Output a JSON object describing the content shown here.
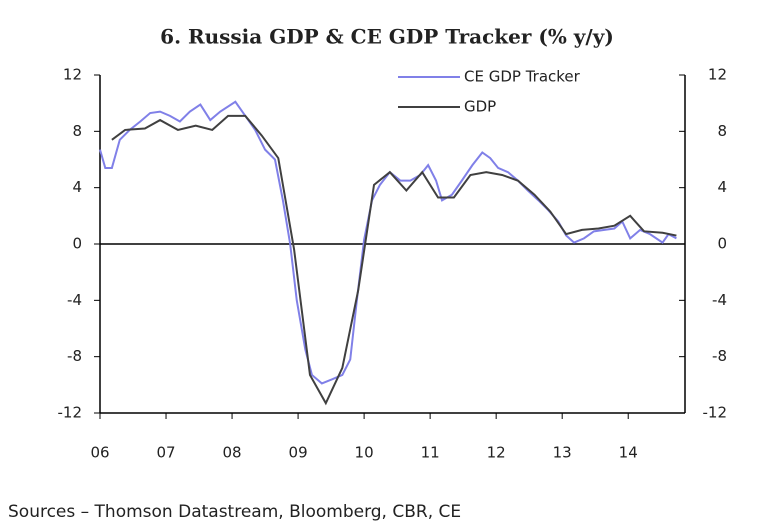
{
  "chart_data": {
    "type": "line",
    "title": "6. Russia GDP & CE GDP Tracker (% y/y)",
    "source": "Sources – Thomson Datastream, Bloomberg, CBR, CE",
    "xlim": [
      2006,
      2014.86
    ],
    "xticks": [
      {
        "value": 2006,
        "label": "06"
      },
      {
        "value": 2007,
        "label": "07"
      },
      {
        "value": 2008,
        "label": "08"
      },
      {
        "value": 2009,
        "label": "09"
      },
      {
        "value": 2010,
        "label": "10"
      },
      {
        "value": 2011,
        "label": "11"
      },
      {
        "value": 2012,
        "label": "12"
      },
      {
        "value": 2013,
        "label": "13"
      },
      {
        "value": 2014,
        "label": "14"
      }
    ],
    "ylim": [
      -12,
      12
    ],
    "yticks": [
      -12,
      -8,
      -4,
      0,
      4,
      8,
      12
    ],
    "y2lim": [
      -12,
      12
    ],
    "y2ticks": [
      -12,
      -8,
      -4,
      0,
      4,
      8,
      12
    ],
    "legend": "top-right",
    "series": [
      {
        "name": "CE GDP Tracker",
        "color": "#8080e8",
        "x": [
          2006.0,
          2006.08,
          2006.18,
          2006.3,
          2006.45,
          2006.61,
          2006.76,
          2006.91,
          2007.06,
          2007.21,
          2007.36,
          2007.52,
          2007.67,
          2007.82,
          2008.05,
          2008.2,
          2008.35,
          2008.5,
          2008.65,
          2008.77,
          2008.88,
          2008.98,
          2009.11,
          2009.21,
          2009.36,
          2009.52,
          2009.67,
          2009.79,
          2009.89,
          2010.0,
          2010.12,
          2010.24,
          2010.39,
          2010.55,
          2010.7,
          2010.85,
          2010.97,
          2011.09,
          2011.18,
          2011.33,
          2011.48,
          2011.64,
          2011.79,
          2011.91,
          2012.03,
          2012.18,
          2012.33,
          2012.48,
          2012.64,
          2012.79,
          2012.94,
          2013.06,
          2013.18,
          2013.33,
          2013.48,
          2013.64,
          2013.79,
          2013.91,
          2014.03,
          2014.18,
          2014.33,
          2014.52,
          2014.61,
          2014.73
        ],
        "values": [
          6.7,
          5.4,
          5.4,
          7.4,
          8.1,
          8.7,
          9.3,
          9.4,
          9.1,
          8.7,
          9.4,
          9.9,
          8.8,
          9.4,
          10.1,
          9.1,
          8.1,
          6.7,
          6.0,
          3.1,
          0,
          -4,
          -7.5,
          -9.3,
          -9.9,
          -9.6,
          -9.3,
          -8.2,
          -4,
          0.3,
          3.1,
          4.2,
          5.1,
          4.5,
          4.5,
          4.9,
          5.6,
          4.5,
          3.1,
          3.5,
          4.5,
          5.6,
          6.5,
          6.1,
          5.4,
          5.1,
          4.5,
          3.8,
          3.1,
          2.4,
          1.6,
          0.6,
          0.1,
          0.4,
          0.9,
          1.0,
          1.1,
          1.6,
          0.4,
          1.0,
          0.7,
          0.1,
          0.7,
          0.4
        ]
      },
      {
        "name": "GDP",
        "color": "#404040",
        "x": [
          2006.18,
          2006.38,
          2006.68,
          2006.91,
          2007.18,
          2007.45,
          2007.7,
          2007.94,
          2008.2,
          2008.45,
          2008.7,
          2008.94,
          2009.18,
          2009.42,
          2009.67,
          2009.91,
          2010.15,
          2010.39,
          2010.64,
          2010.88,
          2011.12,
          2011.36,
          2011.61,
          2011.85,
          2012.09,
          2012.33,
          2012.58,
          2012.82,
          2013.06,
          2013.3,
          2013.55,
          2013.79,
          2014.03,
          2014.24,
          2014.52,
          2014.73
        ],
        "values": [
          7.4,
          8.1,
          8.2,
          8.8,
          8.1,
          8.4,
          8.1,
          9.1,
          9.1,
          7.7,
          6.1,
          -0.4,
          -9.3,
          -11.3,
          -8.8,
          -3.3,
          4.2,
          5.1,
          3.8,
          5.1,
          3.3,
          3.3,
          4.9,
          5.1,
          4.9,
          4.5,
          3.5,
          2.3,
          0.7,
          1.0,
          1.1,
          1.3,
          2.0,
          0.9,
          0.8,
          0.6
        ]
      }
    ]
  }
}
